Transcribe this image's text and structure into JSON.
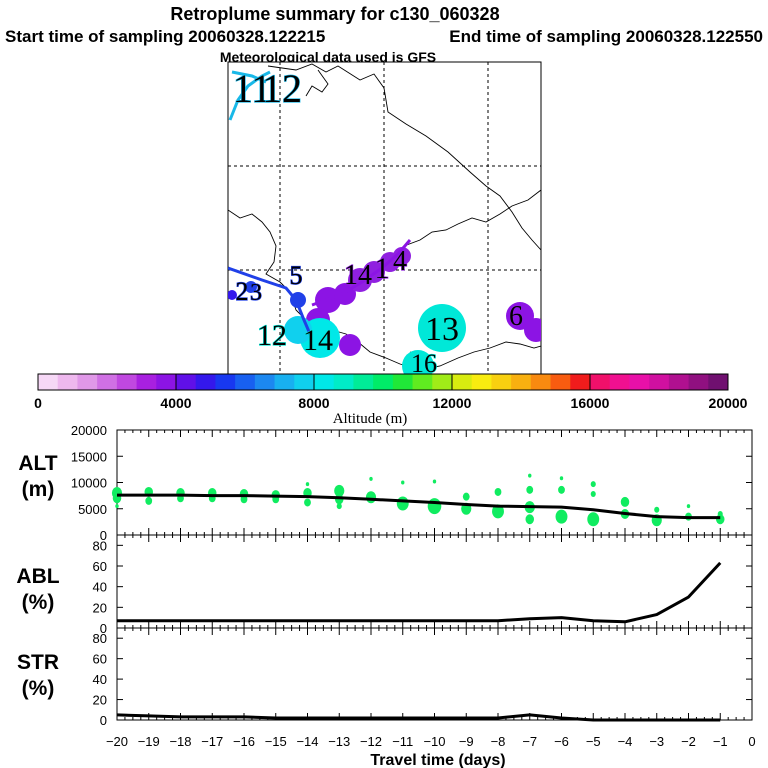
{
  "header": {
    "title": "Retroplume summary for c130_060328",
    "start_label": "Start time of sampling 20060328.122215",
    "end_label": "End time of sampling 20060328.122550",
    "met_label": "Meteorological data used is GFS"
  },
  "map": {
    "cluster_labels": [
      {
        "text": "11",
        "color": "#18b8e8"
      },
      {
        "text": "12",
        "color": "#18b8e8"
      },
      {
        "text": "5",
        "color": "#2040e8"
      },
      {
        "text": "2",
        "color": "#2040e8"
      },
      {
        "text": "3",
        "color": "#2040e8"
      },
      {
        "text": "14",
        "color": "#9020e0"
      },
      {
        "text": "1",
        "color": "#9020e0"
      },
      {
        "text": "4",
        "color": "#9020e0"
      },
      {
        "text": "12",
        "color": "#00e8d8"
      },
      {
        "text": "14",
        "color": "#00e8d8"
      },
      {
        "text": "13",
        "color": "#00e8d8"
      },
      {
        "text": "16",
        "color": "#00e8d8"
      },
      {
        "text": "6",
        "color": "#9020e0"
      }
    ]
  },
  "colorbar": {
    "label": "Altitude (m)",
    "min": 0,
    "max": 20000,
    "tick_values": [
      0,
      4000,
      8000,
      12000,
      16000,
      20000
    ],
    "tick_labels": [
      "0",
      "4000",
      "8000",
      "12000",
      "16000",
      "20000"
    ],
    "colors": [
      "#f6d8f6",
      "#eeb8ee",
      "#e098e8",
      "#d070e4",
      "#c048e0",
      "#a820e0",
      "#8c14e4",
      "#6010e8",
      "#3418ec",
      "#1838f0",
      "#1860f0",
      "#1c88f0",
      "#18b0f0",
      "#10d0ee",
      "#00e8e8",
      "#00ecc8",
      "#00ec98",
      "#00ec68",
      "#20e838",
      "#60ec20",
      "#a0ec18",
      "#d8ec10",
      "#f8ec10",
      "#f8d010",
      "#f8b010",
      "#f88a10",
      "#f85c10",
      "#f01c1c",
      "#f0106a",
      "#f01090",
      "#e810a8",
      "#d010a0",
      "#b01090",
      "#901080",
      "#701070"
    ]
  },
  "chart_data": [
    {
      "type": "line",
      "name": "ALT",
      "ylabel": "ALT",
      "yunit": "(m)",
      "xlabel": "Travel time (days)",
      "ylim": [
        0,
        20000
      ],
      "yticks": [
        0,
        5000,
        10000,
        15000,
        20000
      ],
      "xlim": [
        -20,
        0
      ],
      "xticks": [
        -20,
        -19,
        -18,
        -17,
        -16,
        -15,
        -14,
        -13,
        -12,
        -11,
        -10,
        -9,
        -8,
        -7,
        -6,
        -5,
        -4,
        -3,
        -2,
        -1,
        0
      ],
      "x": [
        -20,
        -19,
        -18,
        -17,
        -16,
        -15,
        -14,
        -13,
        -12,
        -11,
        -10,
        -9,
        -8,
        -7,
        -6,
        -5,
        -4,
        -3,
        -2,
        -1
      ],
      "values": [
        7600,
        7600,
        7600,
        7500,
        7500,
        7400,
        7300,
        7100,
        6800,
        6500,
        6200,
        5800,
        5500,
        5400,
        5300,
        4800,
        4100,
        3500,
        3300,
        3300
      ],
      "scatter": {
        "color": "#10ec60",
        "points": [
          {
            "x": -20,
            "y": 8000,
            "s": 6
          },
          {
            "x": -20,
            "y": 7000,
            "s": 5
          },
          {
            "x": -20,
            "y": 5500,
            "s": 2
          },
          {
            "x": -19,
            "y": 8200,
            "s": 5
          },
          {
            "x": -19,
            "y": 6500,
            "s": 4
          },
          {
            "x": -18,
            "y": 8000,
            "s": 5
          },
          {
            "x": -18,
            "y": 7000,
            "s": 4
          },
          {
            "x": -17,
            "y": 8000,
            "s": 5
          },
          {
            "x": -17,
            "y": 7000,
            "s": 4
          },
          {
            "x": -16,
            "y": 7800,
            "s": 5
          },
          {
            "x": -16,
            "y": 6800,
            "s": 4
          },
          {
            "x": -15,
            "y": 7600,
            "s": 5
          },
          {
            "x": -15,
            "y": 6800,
            "s": 4
          },
          {
            "x": -14,
            "y": 9700,
            "s": 2
          },
          {
            "x": -14,
            "y": 8000,
            "s": 5
          },
          {
            "x": -14,
            "y": 6200,
            "s": 4
          },
          {
            "x": -13,
            "y": 8400,
            "s": 6
          },
          {
            "x": -13,
            "y": 6800,
            "s": 5
          },
          {
            "x": -13,
            "y": 5500,
            "s": 3
          },
          {
            "x": -12,
            "y": 10700,
            "s": 2
          },
          {
            "x": -12,
            "y": 7200,
            "s": 6
          },
          {
            "x": -11,
            "y": 10000,
            "s": 2
          },
          {
            "x": -11,
            "y": 6000,
            "s": 7
          },
          {
            "x": -10,
            "y": 10200,
            "s": 2
          },
          {
            "x": -10,
            "y": 5500,
            "s": 8
          },
          {
            "x": -9,
            "y": 7300,
            "s": 4
          },
          {
            "x": -9,
            "y": 5000,
            "s": 6
          },
          {
            "x": -8,
            "y": 8200,
            "s": 4
          },
          {
            "x": -8,
            "y": 4500,
            "s": 7
          },
          {
            "x": -7,
            "y": 11300,
            "s": 2
          },
          {
            "x": -7,
            "y": 8600,
            "s": 4
          },
          {
            "x": -7,
            "y": 5300,
            "s": 6
          },
          {
            "x": -7,
            "y": 3000,
            "s": 5
          },
          {
            "x": -6,
            "y": 10800,
            "s": 2
          },
          {
            "x": -6,
            "y": 8600,
            "s": 4
          },
          {
            "x": -6,
            "y": 3500,
            "s": 7
          },
          {
            "x": -5,
            "y": 9700,
            "s": 3
          },
          {
            "x": -5,
            "y": 7800,
            "s": 3
          },
          {
            "x": -5,
            "y": 3000,
            "s": 7
          },
          {
            "x": -4,
            "y": 6300,
            "s": 5
          },
          {
            "x": -4,
            "y": 4000,
            "s": 5
          },
          {
            "x": -3,
            "y": 4800,
            "s": 3
          },
          {
            "x": -3,
            "y": 2800,
            "s": 6
          },
          {
            "x": -2,
            "y": 5500,
            "s": 2
          },
          {
            "x": -2,
            "y": 3500,
            "s": 4
          },
          {
            "x": -1,
            "y": 4000,
            "s": 3
          },
          {
            "x": -1,
            "y": 3000,
            "s": 5
          }
        ]
      }
    },
    {
      "type": "line",
      "name": "ABL",
      "ylabel": "ABL",
      "yunit": "(%)",
      "ylim": [
        0,
        90
      ],
      "yticks": [
        0,
        20,
        40,
        60,
        80
      ],
      "xlim": [
        -20,
        0
      ],
      "x": [
        -20,
        -19,
        -18,
        -17,
        -16,
        -15,
        -14,
        -13,
        -12,
        -11,
        -10,
        -9,
        -8,
        -7,
        -6,
        -5,
        -4,
        -3,
        -2,
        -1
      ],
      "values": [
        7,
        7,
        7,
        7,
        7,
        7,
        7,
        7,
        7,
        7,
        7,
        7,
        7,
        9,
        10,
        7,
        6,
        13,
        30,
        63
      ]
    },
    {
      "type": "line",
      "name": "STR",
      "ylabel": "STR",
      "yunit": "(%)",
      "ylim": [
        0,
        90
      ],
      "yticks": [
        0,
        20,
        40,
        60,
        80
      ],
      "xlim": [
        -20,
        0
      ],
      "x": [
        -20,
        -19,
        -18,
        -17,
        -16,
        -15,
        -14,
        -13,
        -12,
        -11,
        -10,
        -9,
        -8,
        -7,
        -6,
        -5,
        -4,
        -3,
        -2,
        -1
      ],
      "values": [
        5,
        4,
        3,
        3,
        3,
        2,
        2,
        2,
        2,
        2,
        2,
        2,
        2,
        5,
        2,
        0,
        0,
        0,
        0,
        0
      ]
    }
  ]
}
